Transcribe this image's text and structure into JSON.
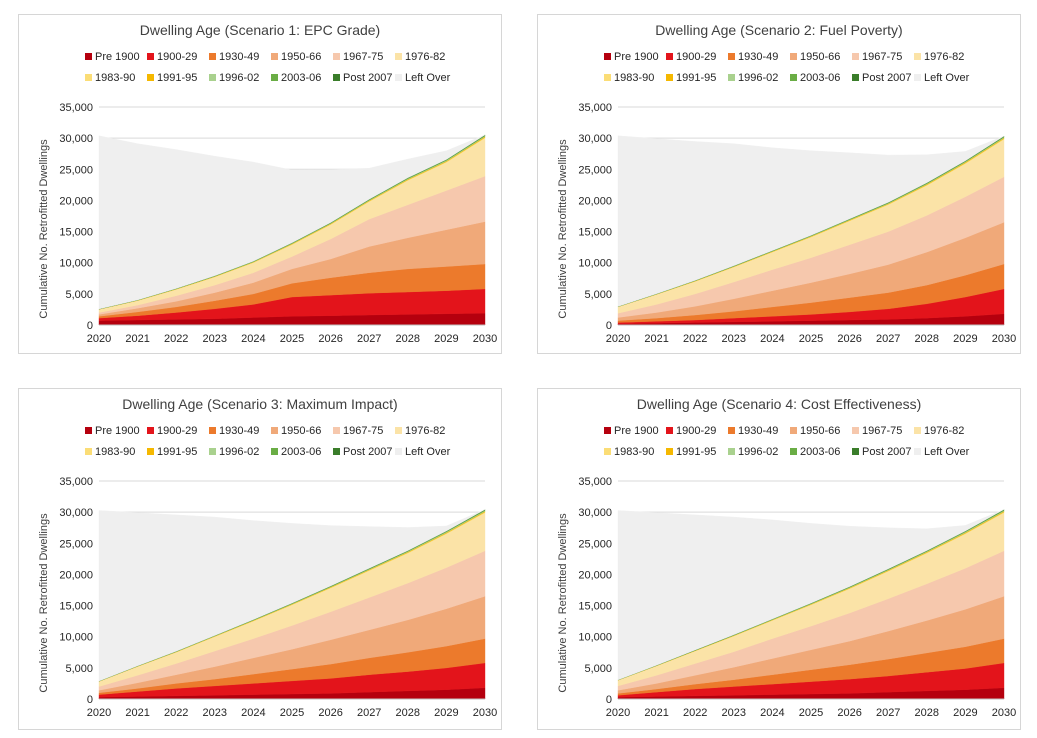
{
  "chart_data": [
    {
      "type": "area",
      "title": "Dwelling Age (Scenario 1: EPC Grade)",
      "ylabel": "Cumulative No. Retrofitted Dwellings",
      "xlabel": "",
      "ylim": [
        0,
        35000
      ],
      "yticks": [
        0,
        5000,
        10000,
        15000,
        20000,
        25000,
        30000,
        35000
      ],
      "grid": true,
      "legend": "top",
      "stacked": true,
      "x": [
        "2020",
        "2021",
        "2022",
        "2023",
        "2024",
        "2025",
        "2026",
        "2027",
        "2028",
        "2029",
        "2030"
      ],
      "series": [
        {
          "name": "Pre 1900",
          "values": [
            700,
            800,
            900,
            1000,
            1200,
            1400,
            1500,
            1600,
            1700,
            1800,
            1900
          ]
        },
        {
          "name": "1900-29",
          "values": [
            400,
            700,
            1100,
            1600,
            2100,
            3100,
            3300,
            3500,
            3600,
            3700,
            3900
          ]
        },
        {
          "name": "1930-49",
          "values": [
            300,
            600,
            900,
            1300,
            1700,
            2200,
            2800,
            3300,
            3700,
            3900,
            4000
          ]
        },
        {
          "name": "1950-66",
          "values": [
            300,
            600,
            900,
            1300,
            1800,
            2300,
            3000,
            4200,
            5000,
            5900,
            6800
          ]
        },
        {
          "name": "1967-75",
          "values": [
            300,
            500,
            900,
            1200,
            1600,
            2000,
            3200,
            4400,
            5300,
            6300,
            7300
          ]
        },
        {
          "name": "1976-82",
          "values": [
            500,
            700,
            1000,
            1300,
            1600,
            1900,
            2300,
            2800,
            3900,
            4500,
            6100
          ]
        },
        {
          "name": "1983-90",
          "values": [
            20,
            30,
            40,
            50,
            60,
            70,
            80,
            90,
            100,
            110,
            120
          ]
        },
        {
          "name": "1991-95",
          "values": [
            20,
            30,
            40,
            50,
            60,
            70,
            80,
            90,
            100,
            110,
            120
          ]
        },
        {
          "name": "1996-02",
          "values": [
            10,
            20,
            30,
            40,
            50,
            60,
            70,
            80,
            90,
            100,
            110
          ]
        },
        {
          "name": "2003-06",
          "values": [
            10,
            20,
            30,
            40,
            50,
            60,
            70,
            80,
            90,
            100,
            110
          ]
        },
        {
          "name": "Post 2007",
          "values": [
            10,
            10,
            20,
            20,
            30,
            30,
            40,
            40,
            50,
            50,
            60
          ]
        },
        {
          "name": "Left Over",
          "values": [
            27800,
            25100,
            22300,
            19200,
            15900,
            11700,
            8500,
            5000,
            3000,
            1400,
            0
          ]
        }
      ]
    },
    {
      "type": "area",
      "title": "Dwelling Age (Scenario 2: Fuel Poverty)",
      "ylabel": "Cumulative No. Retrofitted Dwellings",
      "xlabel": "",
      "ylim": [
        0,
        35000
      ],
      "yticks": [
        0,
        5000,
        10000,
        15000,
        20000,
        25000,
        30000,
        35000
      ],
      "grid": true,
      "legend": "top",
      "stacked": true,
      "x": [
        "2020",
        "2021",
        "2022",
        "2023",
        "2024",
        "2025",
        "2026",
        "2027",
        "2028",
        "2029",
        "2030"
      ],
      "series": [
        {
          "name": "Pre 1900",
          "values": [
            200,
            300,
            400,
            500,
            600,
            700,
            800,
            900,
            1100,
            1400,
            1800
          ]
        },
        {
          "name": "1900-29",
          "values": [
            200,
            300,
            400,
            600,
            800,
            1000,
            1300,
            1700,
            2300,
            3100,
            4000
          ]
        },
        {
          "name": "1930-49",
          "values": [
            300,
            500,
            800,
            1100,
            1500,
            1900,
            2300,
            2600,
            3000,
            3500,
            4000
          ]
        },
        {
          "name": "1950-66",
          "values": [
            500,
            900,
            1400,
            2000,
            2600,
            3200,
            3800,
            4500,
            5300,
            6000,
            6700
          ]
        },
        {
          "name": "1967-75",
          "values": [
            700,
            1300,
            2000,
            2700,
            3400,
            4000,
            4700,
            5300,
            5900,
            6600,
            7300
          ]
        },
        {
          "name": "1976-82",
          "values": [
            1000,
            1600,
            2000,
            2400,
            2800,
            3300,
            3800,
            4300,
            4800,
            5300,
            6000
          ]
        },
        {
          "name": "1983-90",
          "values": [
            20,
            30,
            40,
            50,
            60,
            70,
            80,
            90,
            100,
            110,
            120
          ]
        },
        {
          "name": "1991-95",
          "values": [
            20,
            30,
            40,
            50,
            60,
            70,
            80,
            90,
            100,
            110,
            120
          ]
        },
        {
          "name": "1996-02",
          "values": [
            10,
            20,
            30,
            40,
            50,
            60,
            70,
            80,
            90,
            100,
            110
          ]
        },
        {
          "name": "2003-06",
          "values": [
            10,
            20,
            30,
            40,
            50,
            60,
            70,
            80,
            90,
            100,
            110
          ]
        },
        {
          "name": "Post 2007",
          "values": [
            10,
            10,
            20,
            20,
            30,
            30,
            40,
            40,
            50,
            50,
            60
          ]
        },
        {
          "name": "Left Over",
          "values": [
            27400,
            24900,
            22300,
            19600,
            16500,
            13600,
            10600,
            7600,
            4500,
            1500,
            0
          ]
        }
      ]
    },
    {
      "type": "area",
      "title": "Dwelling Age (Scenario 3: Maximum Impact)",
      "ylabel": "Cumulative No. Retrofitted Dwellings",
      "xlabel": "",
      "ylim": [
        0,
        35000
      ],
      "yticks": [
        0,
        5000,
        10000,
        15000,
        20000,
        25000,
        30000,
        35000
      ],
      "grid": true,
      "legend": "top",
      "stacked": true,
      "x": [
        "2020",
        "2021",
        "2022",
        "2023",
        "2024",
        "2025",
        "2026",
        "2027",
        "2028",
        "2029",
        "2030"
      ],
      "series": [
        {
          "name": "Pre 1900",
          "values": [
            300,
            400,
            500,
            600,
            700,
            800,
            900,
            1100,
            1300,
            1500,
            1800
          ]
        },
        {
          "name": "1900-29",
          "values": [
            400,
            800,
            1200,
            1500,
            1800,
            2100,
            2400,
            2800,
            3100,
            3500,
            4000
          ]
        },
        {
          "name": "1930-49",
          "values": [
            300,
            500,
            800,
            1100,
            1500,
            1900,
            2300,
            2700,
            3100,
            3500,
            3900
          ]
        },
        {
          "name": "1950-66",
          "values": [
            400,
            900,
            1400,
            2000,
            2600,
            3200,
            3900,
            4500,
            5200,
            6000,
            6800
          ]
        },
        {
          "name": "1967-75",
          "values": [
            600,
            1200,
            1800,
            2500,
            3100,
            3800,
            4500,
            5200,
            5900,
            6600,
            7300
          ]
        },
        {
          "name": "1976-82",
          "values": [
            800,
            1400,
            1800,
            2300,
            2800,
            3300,
            3800,
            4300,
            4800,
            5400,
            6100
          ]
        },
        {
          "name": "1983-90",
          "values": [
            20,
            30,
            40,
            50,
            60,
            70,
            80,
            90,
            100,
            110,
            120
          ]
        },
        {
          "name": "1991-95",
          "values": [
            20,
            30,
            40,
            50,
            60,
            70,
            80,
            90,
            100,
            110,
            120
          ]
        },
        {
          "name": "1996-02",
          "values": [
            10,
            20,
            30,
            40,
            50,
            60,
            70,
            80,
            90,
            100,
            110
          ]
        },
        {
          "name": "2003-06",
          "values": [
            10,
            20,
            30,
            40,
            50,
            60,
            70,
            80,
            90,
            100,
            110
          ]
        },
        {
          "name": "Post 2007",
          "values": [
            10,
            10,
            20,
            20,
            30,
            30,
            40,
            40,
            50,
            50,
            60
          ]
        },
        {
          "name": "Left Over",
          "values": [
            27400,
            24600,
            21900,
            19000,
            15900,
            12800,
            9700,
            6700,
            3700,
            800,
            0
          ]
        }
      ]
    },
    {
      "type": "area",
      "title": "Dwelling Age (Scenario 4: Cost Effectiveness)",
      "ylabel": "Cumulative No. Retrofitted Dwellings",
      "xlabel": "",
      "ylim": [
        0,
        35000
      ],
      "yticks": [
        0,
        5000,
        10000,
        15000,
        20000,
        25000,
        30000,
        35000
      ],
      "grid": true,
      "legend": "top",
      "stacked": true,
      "x": [
        "2020",
        "2021",
        "2022",
        "2023",
        "2024",
        "2025",
        "2026",
        "2027",
        "2028",
        "2029",
        "2030"
      ],
      "series": [
        {
          "name": "Pre 1900",
          "values": [
            300,
            400,
            500,
            600,
            700,
            800,
            900,
            1100,
            1300,
            1500,
            1800
          ]
        },
        {
          "name": "1900-29",
          "values": [
            300,
            700,
            1100,
            1400,
            1700,
            2000,
            2300,
            2600,
            3000,
            3400,
            4000
          ]
        },
        {
          "name": "1930-49",
          "values": [
            300,
            500,
            800,
            1100,
            1500,
            1900,
            2300,
            2700,
            3100,
            3500,
            3900
          ]
        },
        {
          "name": "1950-66",
          "values": [
            500,
            900,
            1400,
            2000,
            2600,
            3200,
            3800,
            4500,
            5200,
            6000,
            6800
          ]
        },
        {
          "name": "1967-75",
          "values": [
            700,
            1300,
            1900,
            2500,
            3200,
            3800,
            4500,
            5200,
            5900,
            6600,
            7300
          ]
        },
        {
          "name": "1976-82",
          "values": [
            900,
            1500,
            2000,
            2500,
            2900,
            3400,
            3900,
            4400,
            4900,
            5500,
            6100
          ]
        },
        {
          "name": "1983-90",
          "values": [
            20,
            30,
            40,
            50,
            60,
            70,
            80,
            90,
            100,
            110,
            120
          ]
        },
        {
          "name": "1991-95",
          "values": [
            20,
            30,
            40,
            50,
            60,
            70,
            80,
            90,
            100,
            110,
            120
          ]
        },
        {
          "name": "1996-02",
          "values": [
            10,
            20,
            30,
            40,
            50,
            60,
            70,
            80,
            90,
            100,
            110
          ]
        },
        {
          "name": "2003-06",
          "values": [
            10,
            20,
            30,
            40,
            50,
            60,
            70,
            80,
            90,
            100,
            110
          ]
        },
        {
          "name": "Post 2007",
          "values": [
            10,
            10,
            20,
            20,
            30,
            30,
            40,
            40,
            50,
            50,
            60
          ]
        },
        {
          "name": "Left Over",
          "values": [
            27200,
            24500,
            21700,
            18900,
            15900,
            12800,
            9700,
            6600,
            3500,
            900,
            0
          ]
        }
      ]
    }
  ],
  "colors": {
    "Pre 1900": "#b5000e",
    "1900-29": "#e3141b",
    "1930-49": "#ec7a2c",
    "1950-66": "#f0a979",
    "1967-75": "#f6c8ad",
    "1976-82": "#fbe3a7",
    "1983-90": "#fbdd76",
    "1991-95": "#f5b800",
    "1996-02": "#a9d18e",
    "2003-06": "#6aad45",
    "Post 2007": "#3a7d2a",
    "Left Over": "#efefef"
  }
}
